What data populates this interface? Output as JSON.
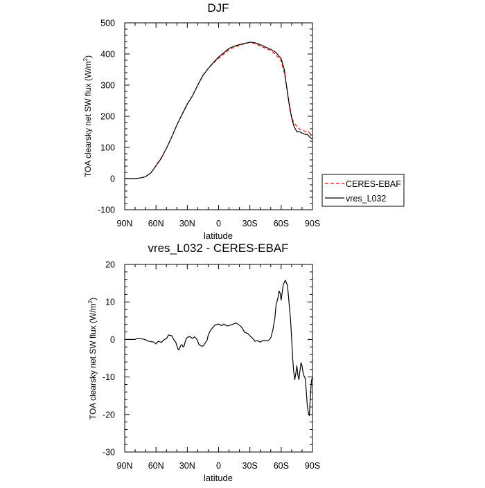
{
  "chart_data": [
    {
      "type": "line",
      "title": "DJF",
      "xlabel": "latitude",
      "ylabel": "TOA clearsky net SW flux (W/m",
      "ylabel_sup": "2",
      "ylabel_end": ")",
      "x_ticks": [
        "90N",
        "60N",
        "30N",
        "0",
        "30S",
        "60S",
        "90S"
      ],
      "xlim": [
        -90,
        90
      ],
      "ylim": [
        -100,
        500
      ],
      "y_ticks": [
        -100,
        0,
        100,
        200,
        300,
        400,
        500
      ],
      "legend": {
        "placement": "right",
        "entries": [
          "CERES-EBAF",
          "vres_L032"
        ]
      },
      "x": [
        -90,
        -85,
        -80,
        -75,
        -70,
        -65,
        -60,
        -55,
        -50,
        -45,
        -40,
        -35,
        -30,
        -25,
        -20,
        -15,
        -10,
        -5,
        0,
        5,
        10,
        15,
        20,
        25,
        30,
        35,
        40,
        45,
        50,
        55,
        60,
        63,
        65,
        68,
        70,
        72,
        75,
        78,
        80,
        83,
        85,
        88,
        90
      ],
      "series": [
        {
          "name": "CERES-EBAF",
          "color": "#ff0000",
          "dash": "dashed",
          "values": [
            0,
            0,
            0,
            2,
            6,
            18,
            42,
            67,
            97,
            133,
            172,
            207,
            240,
            266,
            300,
            332,
            353,
            371,
            386,
            400,
            414,
            422,
            428,
            433,
            437,
            433,
            426,
            418,
            411,
            397,
            378,
            340,
            300,
            238,
            200,
            180,
            168,
            158,
            156,
            152,
            153,
            144,
            140
          ]
        },
        {
          "name": "vres_L032",
          "color": "#000000",
          "dash": "solid",
          "values": [
            0,
            0,
            0,
            2,
            6,
            18,
            41,
            65,
            97,
            133,
            172,
            206,
            239,
            266,
            300,
            331,
            353,
            373,
            390,
            404,
            418,
            425,
            430,
            434,
            438,
            436,
            430,
            422,
            415,
            405,
            385,
            350,
            300,
            230,
            195,
            170,
            150,
            150,
            146,
            142,
            142,
            131,
            127
          ]
        }
      ]
    },
    {
      "type": "line",
      "title": "vres_L032 - CERES-EBAF",
      "xlabel": "latitude",
      "ylabel": "TOA clearsky net SW flux (W/m",
      "ylabel_sup": "2",
      "ylabel_end": ")",
      "x_ticks": [
        "90N",
        "60N",
        "30N",
        "0",
        "30S",
        "60S",
        "90S"
      ],
      "xlim": [
        -90,
        90
      ],
      "ylim": [
        -30,
        20
      ],
      "y_ticks": [
        -30,
        -20,
        -10,
        0,
        10,
        20
      ],
      "series": [
        {
          "name": "vres_L032 - CERES-EBAF",
          "color": "#000000",
          "x": [
            -90,
            -85,
            -80,
            -78,
            -75,
            -72,
            -70,
            -68,
            -65,
            -62,
            -60,
            -58,
            -55,
            -52,
            -50,
            -48,
            -45,
            -43,
            -41,
            -40,
            -39,
            -38,
            -37,
            -36,
            -35,
            -34,
            -33,
            -32,
            -31,
            -30,
            -28,
            -25,
            -23,
            -21,
            -20,
            -19,
            -17,
            -15,
            -13,
            -11,
            -10,
            -8,
            -5,
            -3,
            0,
            3,
            5,
            8,
            10,
            13,
            15,
            17,
            20,
            22,
            25,
            28,
            30,
            33,
            35,
            37,
            40,
            43,
            45,
            48,
            50,
            52,
            54,
            55,
            57,
            58,
            59,
            60,
            61,
            62,
            64,
            66,
            67,
            68,
            69,
            70,
            71,
            72,
            73,
            74,
            75,
            76,
            77,
            78,
            79,
            80,
            81,
            82,
            83,
            84,
            85,
            86,
            87,
            88,
            89,
            90
          ],
          "values": [
            0,
            0,
            0,
            0.3,
            0.2,
            0.1,
            -0.1,
            -0.4,
            -0.6,
            -0.7,
            -1.2,
            -0.5,
            -0.8,
            0,
            0.2,
            1.2,
            1.0,
            0,
            -0.8,
            -1.7,
            -2.5,
            -2.8,
            -2.1,
            -1.5,
            -1.4,
            -2.0,
            -1.7,
            -0.6,
            0.3,
            0.5,
            0.8,
            0.3,
            0.7,
            0.1,
            -0.4,
            -1.3,
            -1.7,
            -1.8,
            -1.0,
            -0.2,
            1.1,
            2.3,
            3.4,
            3.9,
            4.1,
            3.7,
            4.1,
            3.6,
            3.7,
            4.0,
            4.2,
            4.4,
            3.8,
            3.3,
            1.9,
            1.6,
            1.0,
            0.2,
            -0.5,
            -0.3,
            -0.7,
            -0.2,
            -0.4,
            -0.2,
            0.4,
            2.5,
            5.8,
            9.0,
            11.2,
            12.9,
            12.3,
            10.5,
            12.6,
            14.6,
            15.8,
            14.4,
            11.5,
            8.3,
            5.2,
            0.5,
            -5.0,
            -8.6,
            -10.7,
            -9.1,
            -7.0,
            -9.5,
            -10.7,
            -8.3,
            -6.2,
            -7.0,
            -8.9,
            -9.8,
            -10.4,
            -13.5,
            -17.5,
            -19.5,
            -20.3,
            -15.0,
            -11.0,
            -10.0
          ]
        }
      ]
    }
  ]
}
